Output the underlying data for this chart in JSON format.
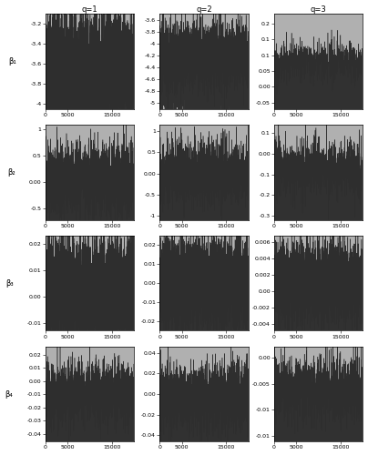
{
  "col_labels": [
    "q=1",
    "q=2",
    "q=3"
  ],
  "row_labels": [
    "β₁",
    "β₂",
    "β₃",
    "β₄"
  ],
  "n_iter": 20000,
  "background_color": "#c8c8c8",
  "chain1_color": "#b0b0b0",
  "chain2_color": "#202020",
  "ylims": [
    [
      [
        -4.05,
        -3.1
      ],
      [
        -5.1,
        -3.5
      ],
      [
        -0.07,
        0.23
      ]
    ],
    [
      [
        -0.72,
        1.08
      ],
      [
        -1.1,
        1.15
      ],
      [
        -0.32,
        0.14
      ]
    ],
    [
      [
        -0.013,
        0.023
      ],
      [
        -0.025,
        0.025
      ],
      [
        -0.0048,
        0.0068
      ]
    ],
    [
      [
        -0.046,
        0.026
      ],
      [
        -0.046,
        0.046
      ],
      [
        -0.016,
        0.002
      ]
    ]
  ],
  "yticks": [
    [
      [
        -4.0,
        -3.8,
        -3.6,
        -3.4,
        -3.2
      ],
      [
        -5.0,
        -4.8,
        -4.6,
        -4.4,
        -4.2,
        -4.0,
        -3.8,
        -3.6
      ],
      [
        0.2,
        0.15,
        0.1,
        0.05,
        0.0,
        -0.05
      ]
    ],
    [
      [
        1.0,
        0.5,
        0.0,
        -0.5
      ],
      [
        1.0,
        0.5,
        0.0,
        -0.5,
        -1.0
      ],
      [
        0.1,
        0.0,
        -0.1,
        -0.2,
        -0.3
      ]
    ],
    [
      [
        0.02,
        0.01,
        0.0,
        -0.01
      ],
      [
        0.02,
        0.01,
        0.0,
        -0.01,
        -0.02
      ],
      [
        0.006,
        0.004,
        0.002,
        0.0,
        -0.002,
        -0.004
      ]
    ],
    [
      [
        0.02,
        0.01,
        0.0,
        -0.01,
        -0.02,
        -0.03,
        -0.04
      ],
      [
        0.04,
        0.02,
        0.0,
        -0.02,
        -0.04
      ],
      [
        0.0,
        -0.005,
        -0.01,
        -0.015
      ]
    ]
  ],
  "xticks": [
    0,
    5000,
    15000
  ],
  "xlim": [
    0,
    20000
  ],
  "chain_params": [
    [
      {
        "means": [
          -3.52,
          -3.78
        ],
        "amps": [
          0.18,
          0.18
        ]
      },
      {
        "means": [
          -3.9,
          -4.48
        ],
        "amps": [
          0.22,
          0.22
        ]
      },
      {
        "means": [
          0.155,
          0.003
        ],
        "amps": [
          0.032,
          0.03
        ]
      }
    ],
    [
      {
        "means": [
          0.46,
          -0.36
        ],
        "amps": [
          0.28,
          0.28
        ]
      },
      {
        "means": [
          0.52,
          -0.5
        ],
        "amps": [
          0.32,
          0.32
        ]
      },
      {
        "means": [
          0.06,
          -0.2
        ],
        "amps": [
          0.065,
          0.065
        ]
      }
    ],
    [
      {
        "means": [
          0.009,
          -0.003
        ],
        "amps": [
          0.007,
          0.007
        ]
      },
      {
        "means": [
          0.009,
          -0.009
        ],
        "amps": [
          0.009,
          0.009
        ]
      },
      {
        "means": [
          0.003,
          -0.0008
        ],
        "amps": [
          0.0018,
          0.0018
        ]
      }
    ],
    [
      {
        "means": [
          0.007,
          -0.026
        ],
        "amps": [
          0.01,
          0.01
        ]
      },
      {
        "means": [
          0.016,
          -0.022
        ],
        "amps": [
          0.013,
          0.013
        ]
      },
      {
        "means": [
          -0.001,
          -0.011
        ],
        "amps": [
          0.0028,
          0.0028
        ]
      }
    ]
  ]
}
